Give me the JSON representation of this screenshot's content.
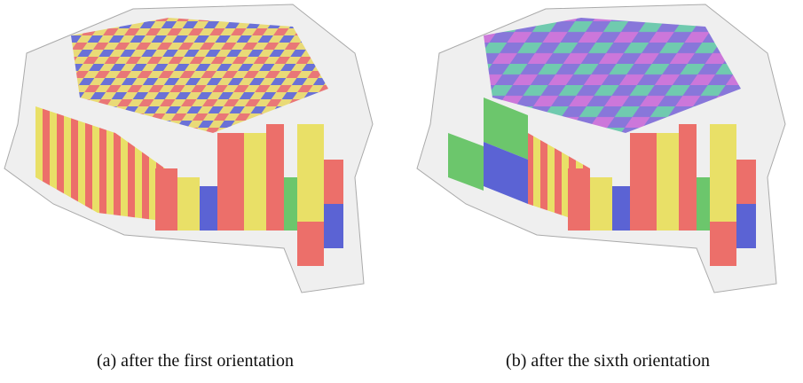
{
  "figures": [
    {
      "caption": "(a) after the first orientation"
    },
    {
      "caption": "(b) after the sixth orientation"
    }
  ]
}
